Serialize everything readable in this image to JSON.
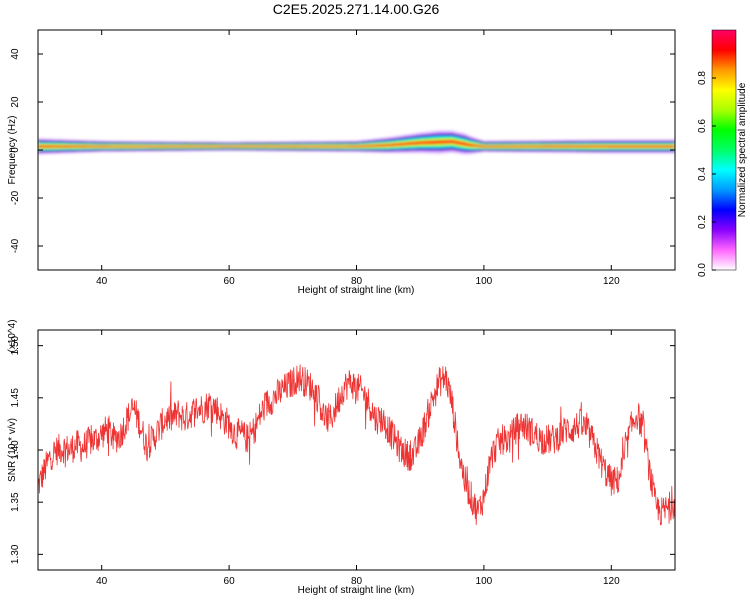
{
  "title": "C2E5.2025.271.14.00.G26",
  "chart_data": [
    {
      "type": "heatmap",
      "xlabel": "Height of straight line (km)",
      "ylabel": "Frequency (Hz)",
      "xlim": [
        30,
        130
      ],
      "ylim": [
        -50,
        50
      ],
      "x_ticks": [
        40,
        60,
        80,
        100,
        120
      ],
      "y_ticks": [
        40,
        20,
        0,
        -20,
        -40
      ],
      "grid": false,
      "colorbar": {
        "label": "Normalized spectral amplitude",
        "range": [
          0,
          1
        ],
        "ticks": [
          "0.0",
          "0.2",
          "0.4",
          "0.6",
          "0.8"
        ],
        "colors": [
          "#ffffff",
          "#ff66ff",
          "#8800ff",
          "#0000ff",
          "#0099ff",
          "#00ffff",
          "#00ff66",
          "#00ff00",
          "#aaff00",
          "#ffff00",
          "#ff9900",
          "#ff0000",
          "#ff0066"
        ]
      },
      "band": {
        "center_hz": [
          [
            30,
            1.5
          ],
          [
            40,
            1.5
          ],
          [
            60,
            1.5
          ],
          [
            80,
            1.5
          ],
          [
            85,
            2
          ],
          [
            90,
            3
          ],
          [
            95,
            3.5
          ],
          [
            98,
            2
          ],
          [
            100,
            1.5
          ],
          [
            120,
            1.5
          ],
          [
            130,
            1.5
          ]
        ],
        "halfwidth_hz": [
          [
            30,
            3.5
          ],
          [
            40,
            2.5
          ],
          [
            60,
            2
          ],
          [
            80,
            2.5
          ],
          [
            88,
            4
          ],
          [
            93,
            5
          ],
          [
            97,
            4.5
          ],
          [
            100,
            2.5
          ],
          [
            120,
            3
          ],
          [
            130,
            3
          ]
        ]
      }
    },
    {
      "type": "line",
      "xlabel": "Height of straight line (km)",
      "ylabel": "SNR (10 * v/v)",
      "y_multiplier": "(x10^4)",
      "xlim": [
        30,
        130
      ],
      "ylim": [
        1.285,
        1.515
      ],
      "x_ticks": [
        40,
        60,
        80,
        100,
        120
      ],
      "y_ticks": [
        "1.30",
        "1.35",
        "1.40",
        "1.45",
        "1.50"
      ],
      "grid": false,
      "series": [
        {
          "color": "#ee3333",
          "x": [
            30,
            31,
            32,
            33,
            34,
            35,
            36,
            37,
            38,
            39,
            40,
            41,
            42,
            43,
            44,
            45,
            46,
            47,
            48,
            49,
            50,
            51,
            52,
            53,
            54,
            55,
            56,
            57,
            58,
            59,
            60,
            61,
            62,
            63,
            64,
            65,
            66,
            67,
            68,
            69,
            70,
            71,
            72,
            73,
            74,
            75,
            76,
            77,
            78,
            79,
            80,
            81,
            82,
            83,
            84,
            85,
            86,
            87,
            88,
            89,
            90,
            91,
            92,
            93,
            94,
            95,
            96,
            97,
            98,
            99,
            100,
            101,
            102,
            103,
            104,
            105,
            106,
            107,
            108,
            109,
            110,
            111,
            112,
            113,
            114,
            115,
            116,
            117,
            118,
            119,
            120,
            121,
            122,
            123,
            124,
            125,
            126,
            127,
            128,
            129,
            130
          ],
          "y": [
            1.365,
            1.38,
            1.395,
            1.4,
            1.402,
            1.4,
            1.405,
            1.402,
            1.408,
            1.41,
            1.415,
            1.42,
            1.41,
            1.415,
            1.43,
            1.44,
            1.425,
            1.405,
            1.41,
            1.42,
            1.43,
            1.43,
            1.435,
            1.43,
            1.435,
            1.44,
            1.44,
            1.445,
            1.44,
            1.43,
            1.425,
            1.415,
            1.415,
            1.41,
            1.42,
            1.435,
            1.445,
            1.45,
            1.455,
            1.46,
            1.465,
            1.47,
            1.465,
            1.46,
            1.45,
            1.43,
            1.43,
            1.445,
            1.46,
            1.465,
            1.46,
            1.455,
            1.445,
            1.43,
            1.43,
            1.42,
            1.41,
            1.4,
            1.395,
            1.395,
            1.41,
            1.43,
            1.45,
            1.465,
            1.47,
            1.445,
            1.4,
            1.37,
            1.355,
            1.34,
            1.355,
            1.39,
            1.405,
            1.41,
            1.41,
            1.42,
            1.425,
            1.42,
            1.415,
            1.41,
            1.41,
            1.41,
            1.415,
            1.42,
            1.42,
            1.425,
            1.42,
            1.41,
            1.395,
            1.38,
            1.37,
            1.37,
            1.39,
            1.42,
            1.435,
            1.42,
            1.38,
            1.345,
            1.34,
            1.345,
            1.35
          ]
        }
      ]
    }
  ]
}
